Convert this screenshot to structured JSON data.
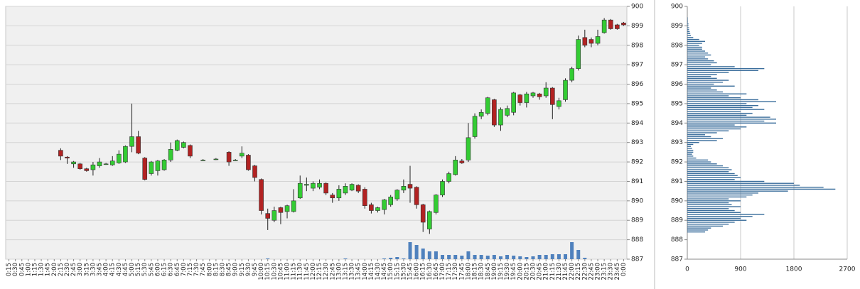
{
  "chart_data": [
    {
      "type": "candlestick",
      "categories": [
        "0:15",
        "0:30",
        "0:45",
        "1:00",
        "1:15",
        "1:30",
        "1:45",
        "2:00",
        "2:15",
        "2:30",
        "2:45",
        "3:00",
        "3:15",
        "3:30",
        "3:45",
        "4:00",
        "4:15",
        "4:30",
        "4:45",
        "5:00",
        "5:15",
        "5:30",
        "5:45",
        "6:00",
        "6:15",
        "6:30",
        "6:45",
        "7:00",
        "7:15",
        "7:30",
        "7:45",
        "8:00",
        "8:15",
        "8:30",
        "8:45",
        "9:00",
        "9:15",
        "9:30",
        "9:45",
        "10:00",
        "10:15",
        "10:30",
        "10:45",
        "11:00",
        "11:15",
        "11:30",
        "11:45",
        "12:00",
        "12:15",
        "12:30",
        "12:45",
        "13:00",
        "13:15",
        "13:30",
        "13:45",
        "14:00",
        "14:15",
        "14:30",
        "14:45",
        "15:00",
        "15:15",
        "15:30",
        "15:45",
        "16:00",
        "16:15",
        "16:30",
        "16:45",
        "17:00",
        "17:15",
        "17:30",
        "17:45",
        "18:00",
        "18:15",
        "18:30",
        "18:45",
        "19:00",
        "19:15",
        "19:30",
        "19:45",
        "20:00",
        "20:15",
        "20:30",
        "20:45",
        "21:00",
        "21:15",
        "21:30",
        "21:45",
        "22:00",
        "22:15",
        "22:30",
        "22:45",
        "23:00",
        "23:15",
        "23:30",
        "23:45",
        "0:00"
      ],
      "open": [
        null,
        null,
        null,
        null,
        null,
        null,
        null,
        null,
        892.6,
        892.25,
        891.9,
        891.9,
        891.65,
        891.6,
        891.8,
        891.9,
        891.85,
        891.95,
        892.0,
        892.8,
        893.3,
        892.2,
        891.4,
        891.55,
        891.6,
        892.1,
        892.6,
        892.75,
        892.85,
        null,
        892.1,
        null,
        892.15,
        null,
        892.5,
        892.1,
        892.3,
        892.35,
        891.8,
        891.1,
        889.35,
        889.0,
        889.65,
        889.45,
        889.45,
        890.15,
        890.8,
        890.65,
        890.7,
        890.9,
        890.3,
        890.15,
        890.4,
        890.55,
        890.8,
        890.6,
        889.8,
        889.5,
        889.55,
        889.8,
        890.1,
        890.55,
        890.85,
        890.7,
        889.8,
        888.55,
        889.4,
        890.3,
        891.0,
        891.35,
        892.05,
        892.1,
        893.3,
        894.35,
        894.5,
        895.2,
        893.9,
        894.4,
        894.55,
        895.45,
        895.05,
        895.4,
        895.5,
        895.4,
        895.8,
        894.85,
        895.2,
        896.2,
        896.8,
        898.4,
        898.3,
        898.1,
        898.65,
        899.3,
        899.05,
        899.15
      ],
      "close": [
        null,
        null,
        null,
        null,
        null,
        null,
        null,
        null,
        892.3,
        892.2,
        892.0,
        891.65,
        891.55,
        891.85,
        892.0,
        891.9,
        892.05,
        892.4,
        892.8,
        893.3,
        892.45,
        891.1,
        892.0,
        892.05,
        892.1,
        892.65,
        893.1,
        893.0,
        892.3,
        null,
        892.1,
        null,
        892.15,
        null,
        892.0,
        892.1,
        892.45,
        891.6,
        891.2,
        889.5,
        889.1,
        889.5,
        889.4,
        889.75,
        890.0,
        890.9,
        890.85,
        890.9,
        890.9,
        890.4,
        890.15,
        890.6,
        890.75,
        890.85,
        890.5,
        889.75,
        889.5,
        889.65,
        890.05,
        890.2,
        890.55,
        890.75,
        890.65,
        889.8,
        888.9,
        889.45,
        890.3,
        891.0,
        891.4,
        892.1,
        891.95,
        893.25,
        894.35,
        894.55,
        895.3,
        893.9,
        894.7,
        894.75,
        895.55,
        895.05,
        895.5,
        895.55,
        895.35,
        895.8,
        894.95,
        895.15,
        896.2,
        896.8,
        898.3,
        898.0,
        898.1,
        898.45,
        899.3,
        898.85,
        898.85,
        899.05
      ],
      "high": [
        null,
        null,
        null,
        null,
        null,
        null,
        null,
        null,
        892.7,
        892.3,
        892.05,
        891.95,
        891.7,
        892.0,
        892.2,
        891.95,
        892.3,
        892.6,
        892.85,
        895.0,
        893.6,
        892.25,
        892.05,
        892.1,
        892.15,
        893.0,
        893.15,
        893.05,
        892.9,
        null,
        892.15,
        null,
        892.2,
        null,
        892.55,
        892.15,
        892.8,
        892.4,
        891.85,
        891.15,
        889.6,
        889.7,
        889.7,
        889.8,
        890.6,
        891.3,
        891.2,
        891.0,
        891.1,
        890.95,
        890.4,
        890.8,
        890.9,
        890.9,
        890.85,
        890.7,
        889.9,
        889.7,
        890.1,
        890.3,
        890.6,
        891.1,
        891.8,
        890.75,
        889.85,
        889.5,
        890.35,
        891.1,
        891.5,
        892.3,
        892.15,
        894.0,
        894.5,
        894.7,
        895.35,
        895.25,
        894.8,
        894.9,
        895.6,
        895.5,
        895.6,
        895.6,
        895.55,
        896.1,
        895.85,
        895.3,
        896.3,
        896.9,
        898.5,
        898.8,
        898.4,
        898.8,
        899.4,
        899.35,
        899.1,
        899.2
      ],
      "low": [
        null,
        null,
        null,
        null,
        null,
        null,
        null,
        null,
        892.1,
        891.9,
        891.7,
        891.6,
        891.5,
        891.3,
        891.7,
        891.85,
        891.8,
        891.9,
        891.95,
        892.5,
        892.4,
        891.05,
        891.3,
        891.3,
        891.55,
        892.0,
        892.55,
        892.7,
        892.2,
        null,
        892.05,
        null,
        892.1,
        null,
        891.8,
        892.05,
        892.2,
        891.55,
        891.0,
        889.3,
        888.5,
        888.9,
        888.8,
        889.1,
        889.4,
        890.1,
        890.5,
        890.5,
        890.6,
        890.3,
        889.9,
        890.0,
        890.3,
        890.5,
        890.4,
        889.6,
        889.35,
        889.4,
        889.3,
        889.7,
        890.0,
        890.4,
        889.9,
        889.6,
        888.4,
        888.3,
        889.3,
        890.2,
        890.9,
        891.3,
        891.9,
        892.0,
        893.2,
        894.2,
        894.4,
        893.8,
        893.6,
        894.3,
        894.4,
        894.9,
        894.8,
        895.3,
        895.2,
        895.3,
        894.2,
        894.7,
        895.1,
        896.1,
        896.7,
        897.9,
        897.9,
        898.0,
        898.6,
        898.8,
        898.8,
        899.0
      ],
      "volume": [
        null,
        null,
        null,
        null,
        null,
        null,
        null,
        null,
        null,
        null,
        null,
        null,
        null,
        null,
        null,
        null,
        null,
        null,
        null,
        null,
        null,
        null,
        null,
        null,
        null,
        null,
        null,
        null,
        null,
        null,
        null,
        null,
        null,
        null,
        null,
        null,
        null,
        null,
        null,
        null,
        1,
        null,
        null,
        null,
        null,
        null,
        null,
        null,
        null,
        null,
        null,
        null,
        1,
        null,
        null,
        null,
        null,
        null,
        1,
        2,
        3,
        1,
        24,
        20,
        15,
        11,
        11,
        6,
        6,
        6,
        5,
        11,
        6,
        6,
        5,
        6,
        4,
        6,
        5,
        4,
        3,
        4,
        6,
        6,
        7,
        7,
        7,
        24,
        13,
        2,
        null,
        null,
        null,
        null,
        null,
        null
      ],
      "ylim": [
        887,
        900
      ],
      "yticks": [
        887,
        888,
        889,
        890,
        891,
        892,
        893,
        894,
        895,
        896,
        897,
        898,
        899,
        900
      ],
      "up_color": "#33cc33",
      "down_color": "#b22222",
      "volume_color": "#4f81bd",
      "grid": true
    },
    {
      "type": "bar",
      "orientation": "horizontal",
      "y": [
        888.4,
        888.5,
        888.6,
        888.7,
        888.8,
        888.9,
        889.0,
        889.1,
        889.2,
        889.3,
        889.4,
        889.5,
        889.6,
        889.7,
        889.8,
        889.9,
        890.0,
        890.1,
        890.2,
        890.3,
        890.4,
        890.5,
        890.6,
        890.7,
        890.8,
        890.9,
        891.0,
        891.1,
        891.2,
        891.3,
        891.4,
        891.5,
        891.6,
        891.7,
        891.8,
        891.9,
        892.0,
        892.1,
        892.2,
        892.3,
        892.4,
        892.5,
        892.6,
        892.7,
        892.8,
        892.9,
        893.0,
        893.1,
        893.2,
        893.3,
        893.4,
        893.5,
        893.6,
        893.7,
        893.8,
        893.9,
        894.0,
        894.1,
        894.2,
        894.3,
        894.4,
        894.5,
        894.6,
        894.7,
        894.8,
        894.9,
        895.0,
        895.1,
        895.2,
        895.3,
        895.4,
        895.5,
        895.6,
        895.7,
        895.8,
        895.9,
        896.0,
        896.1,
        896.2,
        896.3,
        896.4,
        896.5,
        896.6,
        896.7,
        896.8,
        896.9,
        897.0,
        897.1,
        897.2,
        897.3,
        897.4,
        897.5,
        897.6,
        897.7,
        897.8,
        897.9,
        898.0,
        898.1,
        898.2,
        898.3,
        898.4,
        898.5,
        898.6,
        898.7,
        898.8,
        898.9,
        899.0,
        899.1,
        899.2,
        899.3,
        899.4
      ],
      "values": [
        300,
        350,
        400,
        600,
        700,
        800,
        1000,
        900,
        1100,
        1300,
        900,
        800,
        700,
        900,
        750,
        700,
        900,
        700,
        1000,
        1100,
        1200,
        1700,
        2500,
        2300,
        1900,
        1800,
        1300,
        800,
        900,
        850,
        800,
        700,
        750,
        700,
        600,
        500,
        400,
        350,
        150,
        100,
        80,
        100,
        100,
        80,
        60,
        100,
        200,
        500,
        600,
        400,
        300,
        500,
        700,
        900,
        1000,
        800,
        1500,
        1300,
        1500,
        1400,
        1000,
        1100,
        900,
        1300,
        1100,
        1200,
        1000,
        1500,
        1200,
        900,
        700,
        1000,
        600,
        500,
        400,
        800,
        450,
        600,
        700,
        500,
        400,
        500,
        700,
        1200,
        1300,
        800,
        400,
        500,
        450,
        350,
        300,
        400,
        350,
        300,
        250,
        250,
        200,
        250,
        300,
        200,
        100,
        60,
        50,
        40,
        30,
        30,
        20,
        20,
        10,
        10,
        10
      ],
      "color": "#3b6e9c",
      "xlim": [
        0,
        2700
      ],
      "xticks": [
        0,
        900,
        1800,
        2700
      ],
      "ylim": [
        887,
        900
      ],
      "yticks": [
        887,
        888,
        889,
        890,
        891,
        892,
        893,
        894,
        895,
        896,
        897,
        898,
        899,
        900
      ],
      "grid": true
    }
  ]
}
